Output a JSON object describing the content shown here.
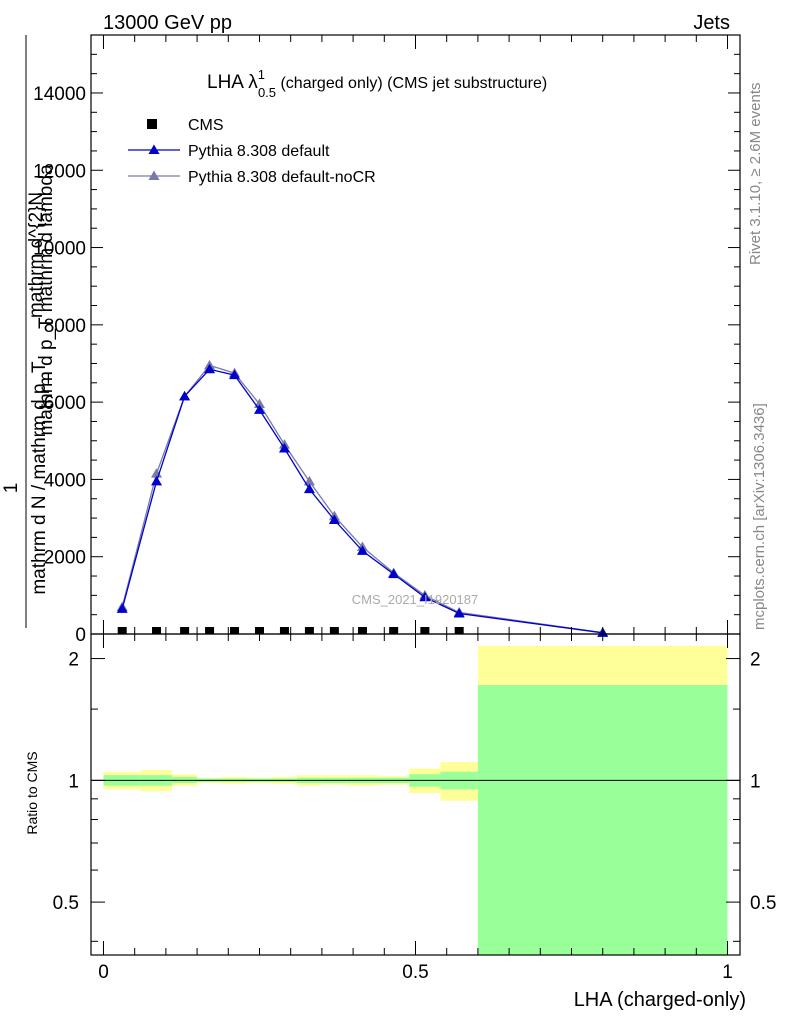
{
  "header": {
    "left": "13000 GeV pp",
    "right": "Jets"
  },
  "side_labels": {
    "rivet": "Rivet 3.1.10, ≥ 2.6M events",
    "mcplots": "mcplots.cern.ch [arXiv:1306.3436]"
  },
  "colors": {
    "cms": "#000000",
    "default": "#0000cc",
    "nocr": "#7a7aaa",
    "band_outer": "#ffff99",
    "band_inner": "#99ff99"
  },
  "chart_data": [
    {
      "type": "line",
      "title": "LHA λ",
      "title_sup": "1",
      "title_sub": "0.5",
      "title_rest": " (charged only) (CMS jet substructure)",
      "ylabel_top": "mathrm d^{2}N",
      "ylabel_mid": "mathrm d p_T mathrm d lambda",
      "ylabel_frac_num": "1",
      "ylabel_frac_den": "mathrm d N / mathrm d p_T",
      "watermark": "CMS_2021_I1920187",
      "ylim": [
        0,
        15500
      ],
      "yticks": [
        0,
        2000,
        4000,
        6000,
        8000,
        10000,
        12000,
        14000
      ],
      "ytick_labels": [
        "0",
        "2000",
        "4000",
        "6000",
        "8000",
        "10000",
        "12000",
        "14000"
      ],
      "legend": [
        "CMS",
        "Pythia 8.308 default",
        "Pythia 8.308 default-noCR"
      ],
      "series": [
        {
          "name": "CMS",
          "x": [
            0.03,
            0.085,
            0.13,
            0.17,
            0.21,
            0.25,
            0.29,
            0.33,
            0.37,
            0.415,
            0.465,
            0.515,
            0.57
          ],
          "y": [
            0,
            0,
            0,
            0,
            0,
            0,
            0,
            0,
            0,
            0,
            0,
            0,
            0
          ]
        },
        {
          "name": "Pythia 8.308 default",
          "x": [
            0.03,
            0.085,
            0.13,
            0.17,
            0.21,
            0.25,
            0.29,
            0.33,
            0.37,
            0.415,
            0.465,
            0.515,
            0.57,
            0.8
          ],
          "y": [
            650,
            3950,
            6150,
            6850,
            6700,
            5800,
            4800,
            3750,
            2950,
            2150,
            1550,
            950,
            530,
            30
          ]
        },
        {
          "name": "Pythia 8.308 default-noCR",
          "x": [
            0.03,
            0.085,
            0.13,
            0.17,
            0.21,
            0.25,
            0.29,
            0.33,
            0.37,
            0.415,
            0.465,
            0.515,
            0.57,
            0.8
          ],
          "y": [
            700,
            4150,
            6150,
            6950,
            6750,
            5950,
            4900,
            3950,
            3050,
            2250,
            1580,
            1000,
            560,
            35
          ]
        }
      ]
    },
    {
      "type": "area",
      "ylabel": "Ratio to CMS",
      "xlabel": "LHA (charged-only)",
      "xlim": [
        -0.02,
        1.02
      ],
      "ylim": [
        0.37,
        2.3
      ],
      "xticks": [
        0,
        0.5,
        1
      ],
      "xtick_labels": [
        "0",
        "0.5",
        "1"
      ],
      "yticks": [
        0.5,
        1,
        2
      ],
      "ytick_labels": [
        "0.5",
        "1",
        "2"
      ],
      "bins": [
        {
          "x0": 0.0,
          "x1": 0.06,
          "outer": [
            0.95,
            1.05
          ],
          "inner": [
            0.97,
            1.03
          ]
        },
        {
          "x0": 0.06,
          "x1": 0.11,
          "outer": [
            0.94,
            1.06
          ],
          "inner": [
            0.97,
            1.03
          ]
        },
        {
          "x0": 0.11,
          "x1": 0.15,
          "outer": [
            0.97,
            1.035
          ],
          "inner": [
            0.985,
            1.02
          ]
        },
        {
          "x0": 0.15,
          "x1": 0.19,
          "outer": [
            0.985,
            1.015
          ],
          "inner": [
            0.99,
            1.01
          ]
        },
        {
          "x0": 0.19,
          "x1": 0.23,
          "outer": [
            0.98,
            1.02
          ],
          "inner": [
            0.99,
            1.01
          ]
        },
        {
          "x0": 0.23,
          "x1": 0.27,
          "outer": [
            0.985,
            1.015
          ],
          "inner": [
            0.99,
            1.01
          ]
        },
        {
          "x0": 0.27,
          "x1": 0.31,
          "outer": [
            0.98,
            1.02
          ],
          "inner": [
            0.99,
            1.01
          ]
        },
        {
          "x0": 0.31,
          "x1": 0.35,
          "outer": [
            0.97,
            1.03
          ],
          "inner": [
            0.985,
            1.015
          ]
        },
        {
          "x0": 0.35,
          "x1": 0.39,
          "outer": [
            0.975,
            1.03
          ],
          "inner": [
            0.985,
            1.015
          ]
        },
        {
          "x0": 0.39,
          "x1": 0.44,
          "outer": [
            0.97,
            1.03
          ],
          "inner": [
            0.985,
            1.015
          ]
        },
        {
          "x0": 0.44,
          "x1": 0.49,
          "outer": [
            0.975,
            1.025
          ],
          "inner": [
            0.985,
            1.015
          ]
        },
        {
          "x0": 0.49,
          "x1": 0.54,
          "outer": [
            0.93,
            1.07
          ],
          "inner": [
            0.965,
            1.035
          ]
        },
        {
          "x0": 0.54,
          "x1": 0.6,
          "outer": [
            0.89,
            1.11
          ],
          "inner": [
            0.95,
            1.05
          ]
        },
        {
          "x0": 0.6,
          "x1": 1.0,
          "outer": [
            0.37,
            2.15
          ],
          "inner": [
            0.37,
            1.72
          ]
        }
      ]
    }
  ]
}
